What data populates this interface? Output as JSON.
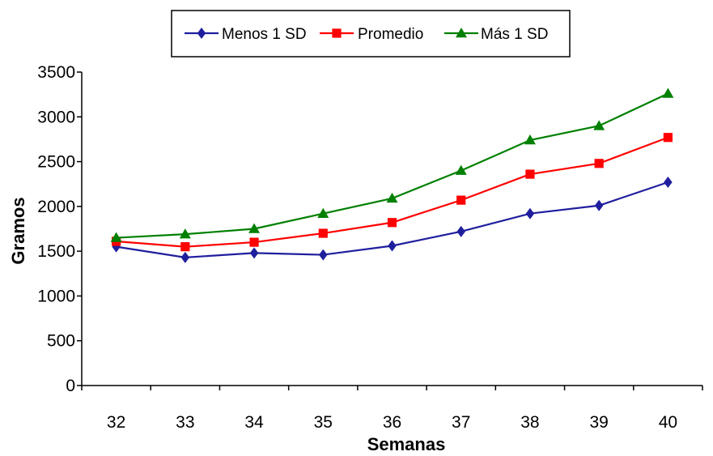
{
  "chart_data": {
    "type": "line",
    "title": "",
    "xlabel": "Semanas",
    "ylabel": "Gramos",
    "x": [
      32,
      33,
      34,
      35,
      36,
      37,
      38,
      39,
      40
    ],
    "x_tick_labels": [
      "32",
      "33",
      "34",
      "35",
      "36",
      "37",
      "38",
      "39",
      "40"
    ],
    "ylim": [
      0,
      3500
    ],
    "y_ticks": [
      0,
      500,
      1000,
      1500,
      2000,
      2500,
      3000,
      3500
    ],
    "y_tick_labels": [
      "0",
      "500",
      "1000",
      "1500",
      "2000",
      "2500",
      "3000",
      "3500"
    ],
    "grid": false,
    "legend_position": "top",
    "series": [
      {
        "name": "Menos 1 SD",
        "color": "#1f1f9e",
        "marker": "diamond",
        "values": [
          1550,
          1430,
          1480,
          1460,
          1560,
          1720,
          1920,
          2010,
          2270
        ]
      },
      {
        "name": "Promedio",
        "color": "#ff0000",
        "marker": "square",
        "values": [
          1610,
          1550,
          1600,
          1700,
          1820,
          2070,
          2360,
          2480,
          2770
        ]
      },
      {
        "name": "Más 1 SD",
        "color": "#008000",
        "marker": "triangle",
        "values": [
          1650,
          1690,
          1750,
          1920,
          2090,
          2400,
          2740,
          2900,
          3260
        ]
      }
    ]
  }
}
